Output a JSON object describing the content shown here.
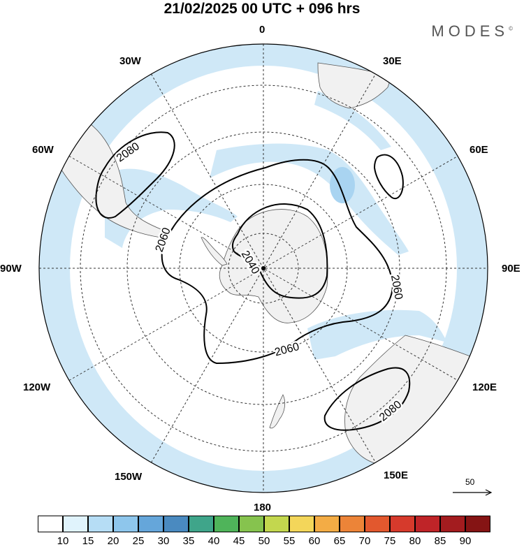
{
  "header": {
    "title": "21/02/2025  00 UTC  + 096 hrs",
    "brand": "MODES",
    "brand_mark": "©"
  },
  "map": {
    "projection": "south-polar-stereographic",
    "lon_labels": {
      "lon_0": "0",
      "lon_30e": "30E",
      "lon_60e": "60E",
      "lon_90e": "90E",
      "lon_120e": "120E",
      "lon_150e": "150E",
      "lon_180": "180",
      "lon_150w": "150W",
      "lon_120w": "120W",
      "lon_90w": "90W",
      "lon_60w": "60W",
      "lon_30w": "30W"
    },
    "contour_labels": [
      "2080",
      "2060",
      "2040",
      "2060",
      "2060",
      "2080"
    ],
    "wind_reference": {
      "value": "50"
    },
    "colors": {
      "land": "#f1f1f1",
      "coast": "#555555",
      "wind_shade_light": "#cfe8f7",
      "wind_shade_mid": "#b2daf3",
      "contour": "#000000",
      "grid": "#333333"
    }
  },
  "legend": {
    "ticks": [
      "10",
      "15",
      "20",
      "25",
      "30",
      "35",
      "40",
      "45",
      "50",
      "55",
      "60",
      "65",
      "70",
      "75",
      "80",
      "85",
      "90"
    ],
    "colors": [
      "#ffffff",
      "#e0f3fc",
      "#b6ddf5",
      "#8ec6ec",
      "#65a6da",
      "#4a8ac0",
      "#3fa58a",
      "#4fb45a",
      "#86c34e",
      "#c3d74e",
      "#f3d65a",
      "#f3ac45",
      "#ec8438",
      "#e2582e",
      "#d63a2c",
      "#bf2428",
      "#a31c1f",
      "#851414"
    ]
  }
}
